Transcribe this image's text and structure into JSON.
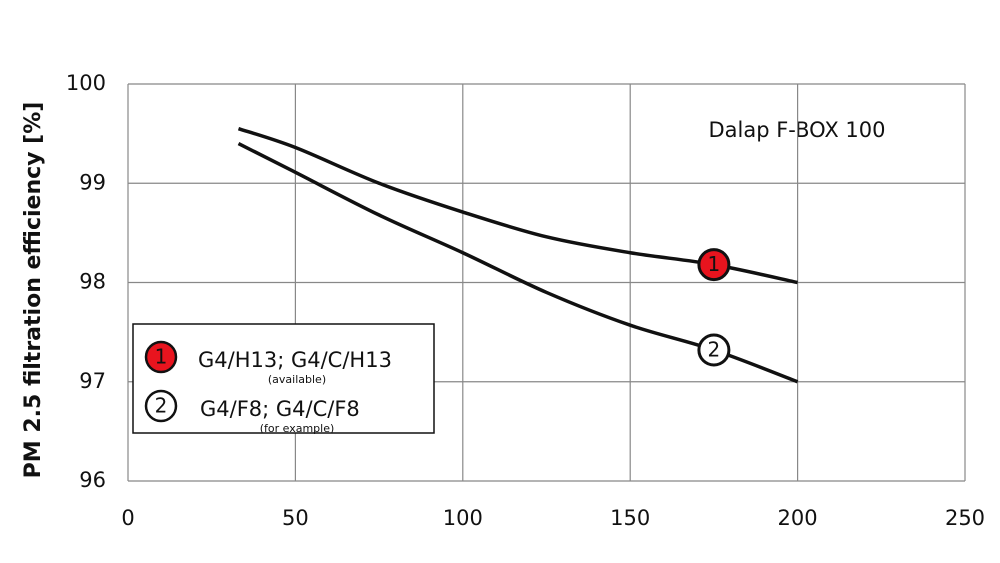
{
  "chart_data": {
    "type": "line",
    "ylabel": "PM 2.5 filtration efficiency [%]",
    "annotation": "Dalap F-BOX 100",
    "x": [
      33,
      50,
      75,
      100,
      125,
      150,
      175,
      200
    ],
    "series": [
      {
        "name": "G4/H13; G4/C/H13",
        "note": "(available)",
        "marker_label": "1",
        "color": "#111111",
        "marker_color": "#e8141e",
        "values": [
          99.55,
          99.36,
          99.0,
          98.71,
          98.46,
          98.3,
          98.18,
          98.0
        ]
      },
      {
        "name": "G4/F8; G4/C/F8",
        "note": "(for example)",
        "marker_label": "2",
        "color": "#111111",
        "marker_color": "#ffffff",
        "values": [
          99.4,
          99.11,
          98.68,
          98.3,
          97.9,
          97.57,
          97.32,
          97.0
        ]
      }
    ],
    "xlim": [
      0,
      250
    ],
    "xticks": [
      0,
      50,
      100,
      150,
      200,
      250
    ],
    "ylim": [
      96,
      100
    ],
    "yticks": [
      96,
      97,
      98,
      99,
      100
    ],
    "grid": true
  }
}
